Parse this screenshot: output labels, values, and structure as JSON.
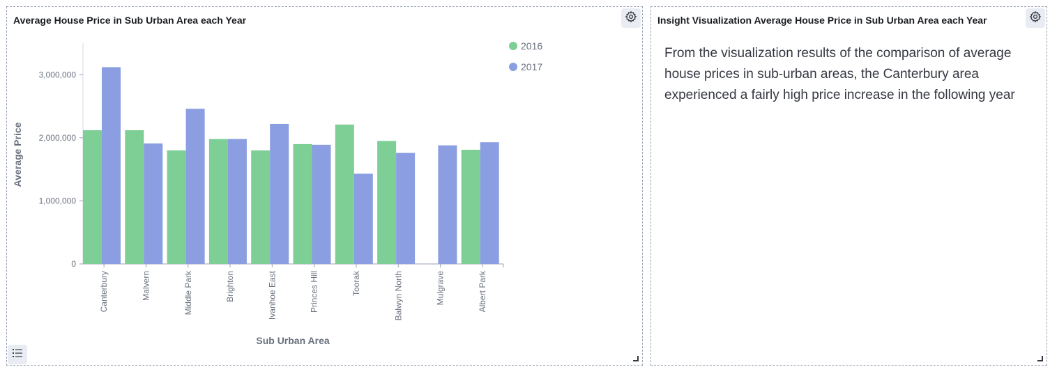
{
  "chart_panel": {
    "title": "Average House Price in Sub Urban Area each Year",
    "settings_icon": "gear-icon",
    "legend_toggle_icon": "list-icon"
  },
  "insight_panel": {
    "title": "Insight Visualization Average House Price in Sub Urban Area each Year",
    "settings_icon": "gear-icon",
    "body": "From the visualization results of the comparison of average house prices in sub-urban areas, the Canterbury area experienced a fairly high price increase in the following year"
  },
  "chart_data": {
    "type": "bar",
    "xlabel": "Sub Urban Area",
    "ylabel": "Average Price",
    "ylim": [
      0,
      3500000
    ],
    "yticks": [
      0,
      1000000,
      2000000,
      3000000
    ],
    "ytick_labels": [
      "0",
      "1,000,000",
      "2,000,000",
      "3,000,000"
    ],
    "categories": [
      "Canterbury",
      "Malvern",
      "Middle Park",
      "Brighton",
      "Ivanhoe East",
      "Princes Hill",
      "Toorak",
      "Balwyn North",
      "Mulgrave",
      "Albert Park"
    ],
    "series": [
      {
        "name": "2016",
        "color": "#7dcf96",
        "values": [
          2120000,
          2120000,
          1800000,
          1980000,
          1800000,
          1900000,
          2210000,
          1950000,
          null,
          1810000
        ]
      },
      {
        "name": "2017",
        "color": "#8a9ee1",
        "values": [
          3120000,
          1910000,
          2460000,
          1980000,
          2220000,
          1890000,
          1430000,
          1760000,
          1880000,
          1930000
        ]
      }
    ],
    "legend_position": "top-right",
    "grid": false
  }
}
